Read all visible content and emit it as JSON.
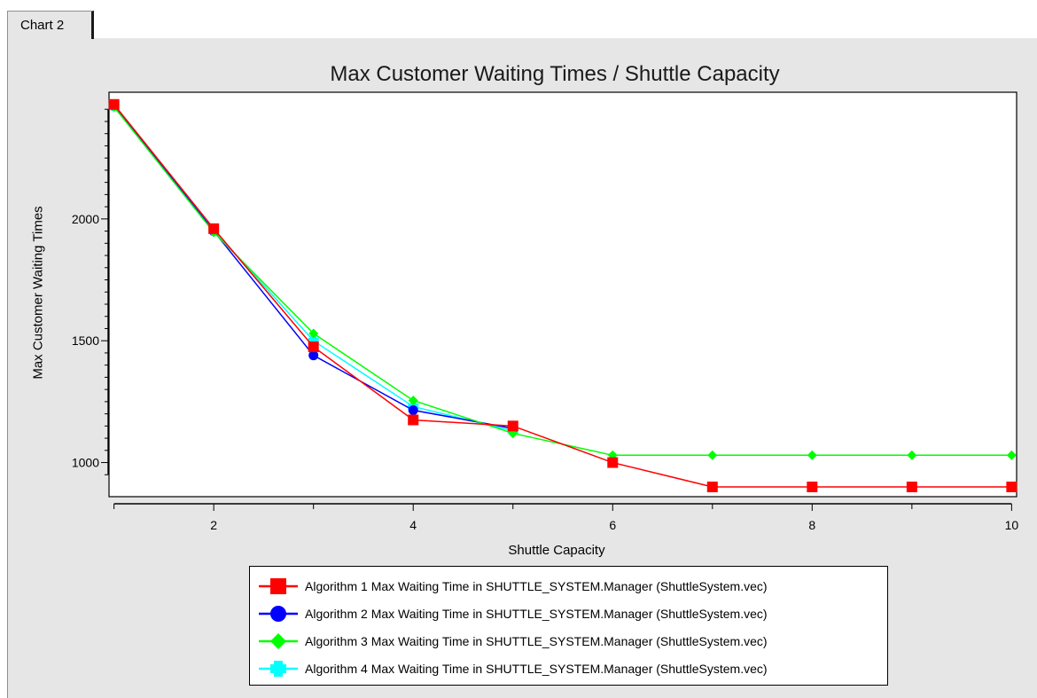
{
  "tab": {
    "label": "Chart 2"
  },
  "chart_data": {
    "type": "line",
    "title": "Max Customer Waiting Times / Shuttle Capacity",
    "xlabel": "Shuttle Capacity",
    "ylabel": "Max Customer Waiting Times",
    "xlim": [
      0.95,
      10.05
    ],
    "ylim": [
      860,
      2520
    ],
    "xticks": [
      2,
      4,
      6,
      8,
      10
    ],
    "yticks": [
      1000,
      1500,
      2000
    ],
    "grid": false,
    "legend_position": "bottom",
    "x": [
      1,
      2,
      3,
      4,
      5,
      6,
      7,
      8,
      9,
      10
    ],
    "series": [
      {
        "name": "Algorithm 1 Max Waiting Time in SHUTTLE_SYSTEM.Manager (ShuttleSystem.vec)",
        "color": "#ff0000",
        "marker": "square",
        "x": [
          1,
          2,
          3,
          4,
          5,
          6,
          7,
          8,
          9,
          10
        ],
        "values": [
          2470,
          1960,
          1475,
          1175,
          1150,
          1000,
          900,
          900,
          900,
          900
        ]
      },
      {
        "name": "Algorithm 2 Max Waiting Time in SHUTTLE_SYSTEM.Manager (ShuttleSystem.vec)",
        "color": "#0000ff",
        "marker": "circle",
        "x": [
          1,
          2,
          3,
          4,
          5
        ],
        "values": [
          2465,
          1950,
          1440,
          1215,
          1140
        ]
      },
      {
        "name": "Algorithm 3 Max Waiting Time in SHUTTLE_SYSTEM.Manager (ShuttleSystem.vec)",
        "color": "#00ff00",
        "marker": "diamond",
        "x": [
          1,
          2,
          3,
          4,
          5,
          6,
          7,
          8,
          9,
          10
        ],
        "values": [
          2460,
          1945,
          1530,
          1255,
          1120,
          1030,
          1030,
          1030,
          1030,
          1030
        ]
      },
      {
        "name": "Algorithm 4 Max Waiting Time in SHUTTLE_SYSTEM.Manager (ShuttleSystem.vec)",
        "color": "#00ffff",
        "marker": "plus",
        "x": [
          1,
          2,
          3,
          4,
          5
        ],
        "values": [
          2465,
          1955,
          1500,
          1230,
          1130
        ]
      }
    ]
  }
}
